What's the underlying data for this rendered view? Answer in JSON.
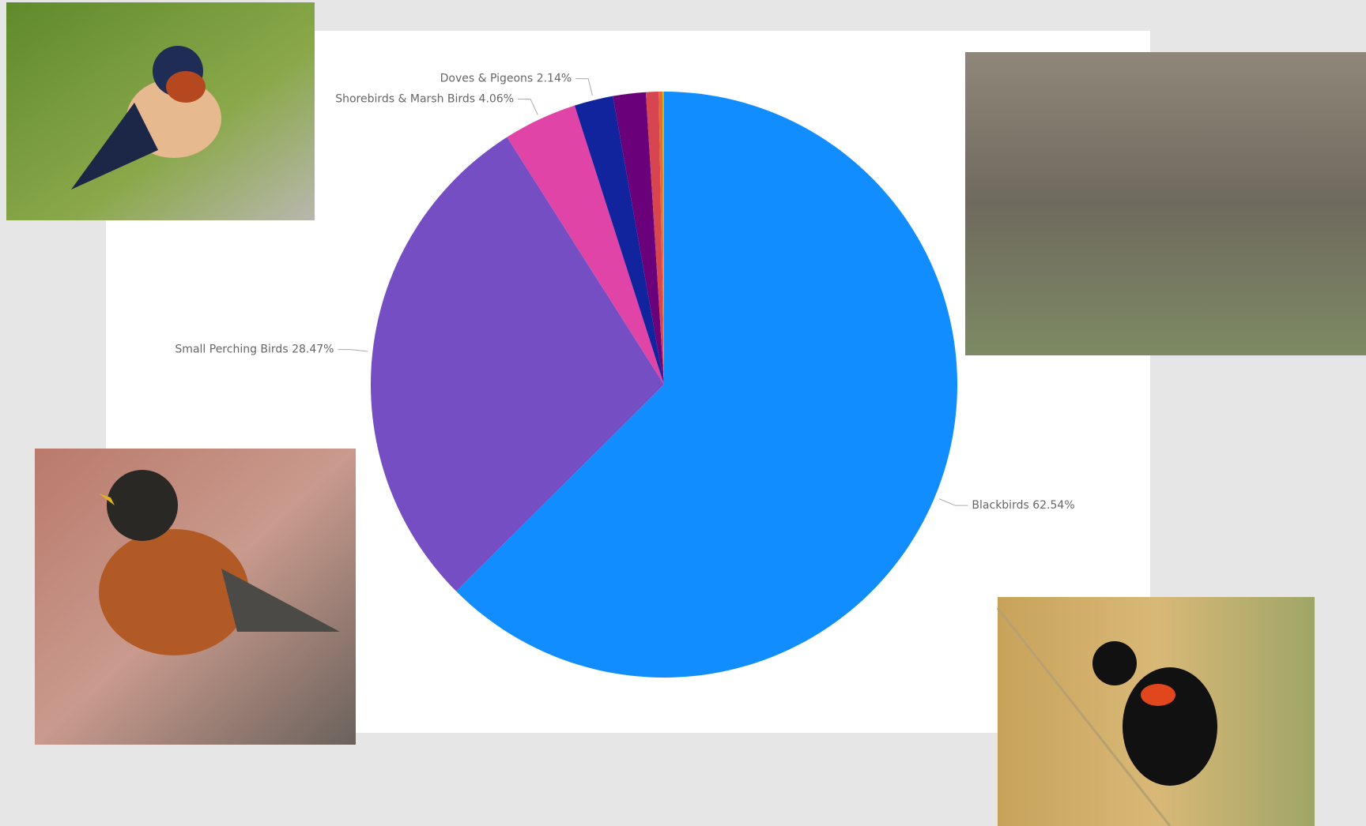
{
  "chart_data": {
    "type": "pie",
    "categories": [
      "Blackbirds",
      "Small Perching Birds",
      "Shorebirds & Marsh Birds",
      "Doves & Pigeons",
      null,
      null,
      null,
      null
    ],
    "values": [
      62.54,
      28.47,
      4.06,
      2.14,
      1.8,
      0.7,
      0.2,
      0.09
    ],
    "value_labels": [
      "62.54%",
      "28.47%",
      "4.06%",
      "2.14%",
      null,
      null,
      null,
      null
    ],
    "colors": [
      "#118dff",
      "#744ec2",
      "#e044a7",
      "#12239e",
      "#6b007b",
      "#d64550",
      "#e66c37",
      "#d9b300"
    ]
  }
}
